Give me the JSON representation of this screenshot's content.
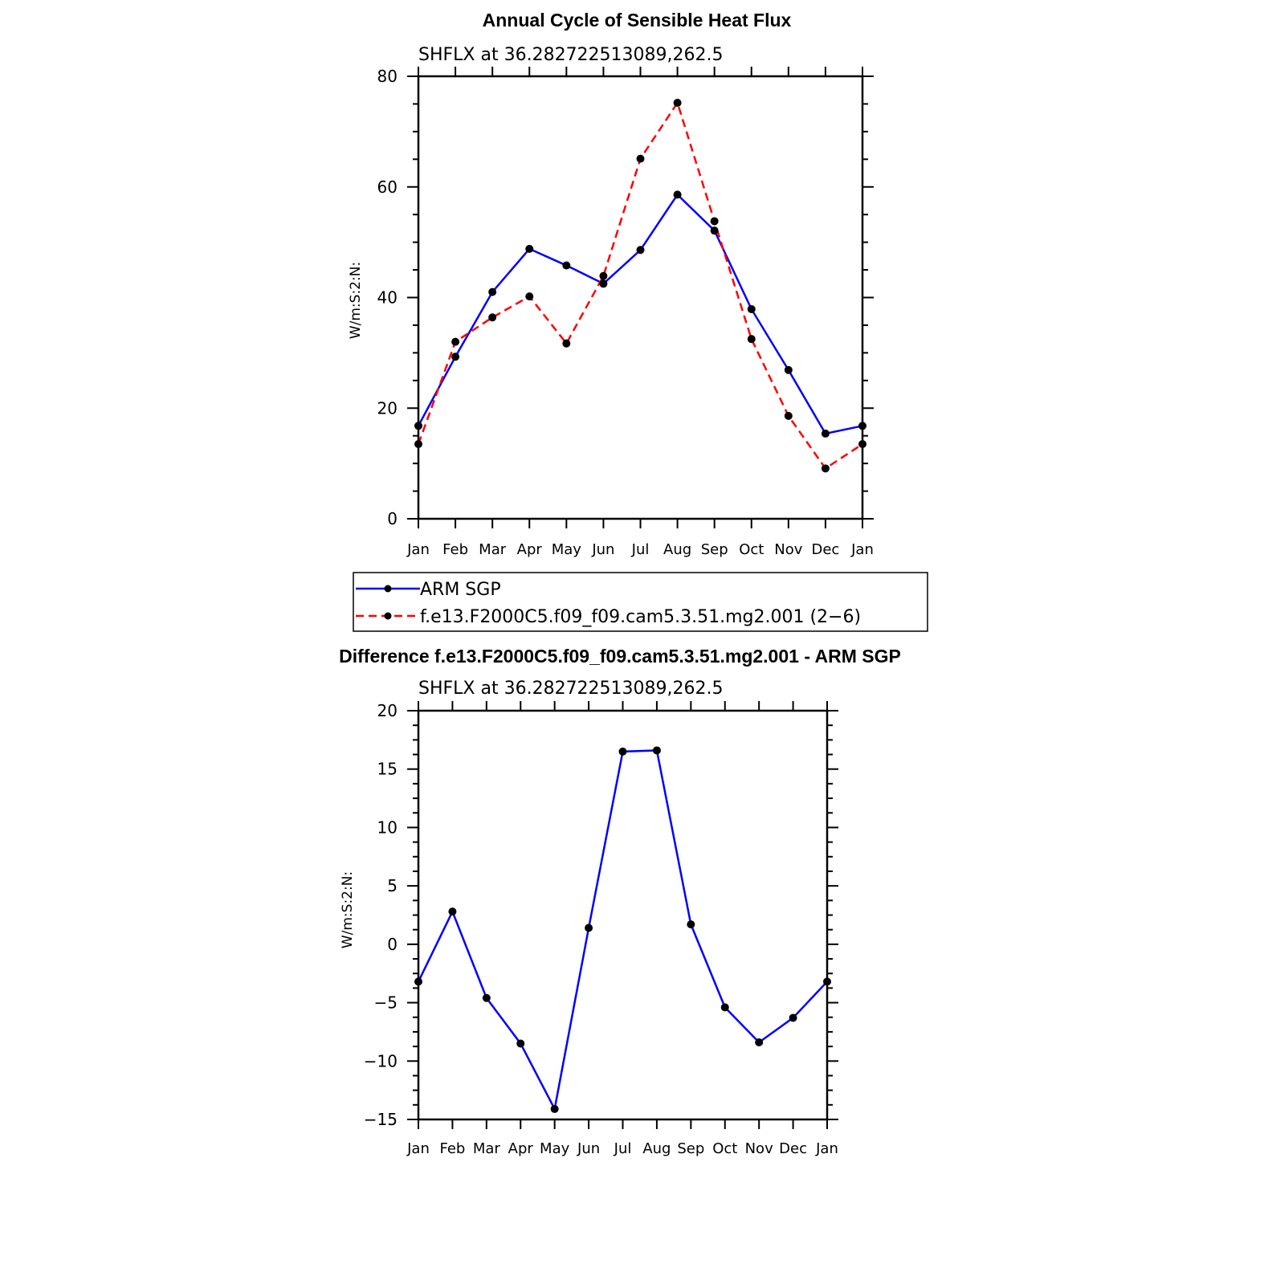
{
  "chart_data": [
    {
      "type": "line",
      "title": "Annual Cycle of Sensible Heat Flux",
      "subtitle": "SHFLX at 36.282722513089,262.5",
      "xlabel": "",
      "ylabel": "W/m:S:2:N:",
      "categories": [
        "Jan",
        "Feb",
        "Mar",
        "Apr",
        "May",
        "Jun",
        "Jul",
        "Aug",
        "Sep",
        "Oct",
        "Nov",
        "Dec",
        "Jan"
      ],
      "ylim": [
        0,
        80
      ],
      "yticks": [
        0,
        20,
        40,
        60,
        80
      ],
      "series": [
        {
          "name": "ARM SGP",
          "color": "#0000ff",
          "dash": "solid",
          "values": [
            16.8,
            29.3,
            41.0,
            48.8,
            45.8,
            42.5,
            48.6,
            58.6,
            52.1,
            37.9,
            26.9,
            15.4,
            16.8
          ]
        },
        {
          "name": "f.e13.F2000C5.f09_f09.cam5.3.51.mg2.001 (2−6)",
          "color": "#ff0000",
          "dash": "dashed",
          "values": [
            13.5,
            32.0,
            36.4,
            40.2,
            31.7,
            43.9,
            65.1,
            75.2,
            53.8,
            32.5,
            18.6,
            9.1,
            13.5
          ]
        }
      ]
    },
    {
      "type": "line",
      "title": "Difference f.e13.F2000C5.f09_f09.cam5.3.51.mg2.001 - ARM SGP",
      "subtitle": "SHFLX at 36.282722513089,262.5",
      "xlabel": "",
      "ylabel": "W/m:S:2:N:",
      "categories": [
        "Jan",
        "Feb",
        "Mar",
        "Apr",
        "May",
        "Jun",
        "Jul",
        "Aug",
        "Sep",
        "Oct",
        "Nov",
        "Dec",
        "Jan"
      ],
      "ylim": [
        -15,
        20
      ],
      "yticks": [
        -15,
        -10,
        -5,
        0,
        5,
        10,
        15,
        20
      ],
      "ytick_labels": [
        "−15",
        "−10",
        "−5",
        "0",
        "5",
        "10",
        "15",
        "20"
      ],
      "series": [
        {
          "name": "Difference",
          "color": "#0000ff",
          "dash": "solid",
          "values": [
            -3.2,
            2.8,
            -4.6,
            -8.5,
            -14.1,
            1.4,
            16.5,
            16.6,
            1.7,
            -5.4,
            -8.4,
            -6.3,
            -3.2
          ]
        }
      ]
    }
  ]
}
